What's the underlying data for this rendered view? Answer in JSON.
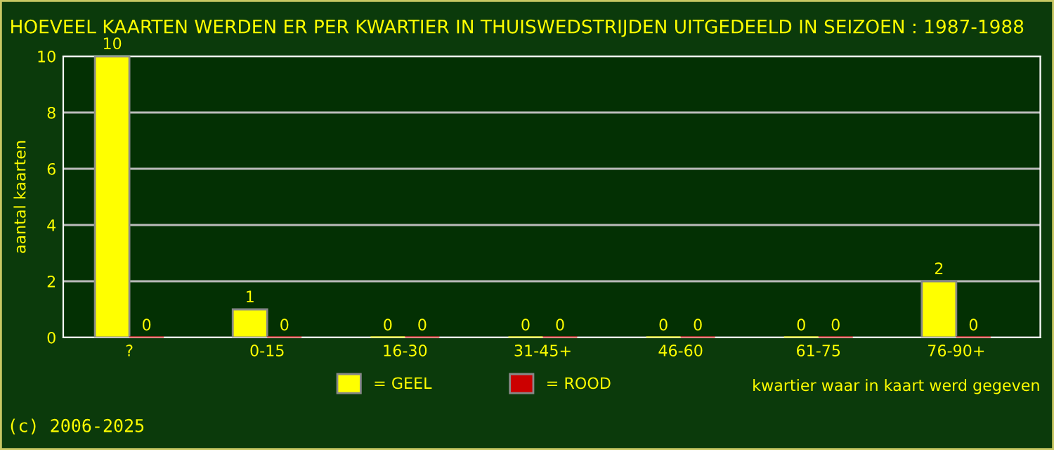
{
  "chart_data": {
    "type": "bar",
    "title": "HOEVEEL KAARTEN WERDEN ER PER KWARTIER IN THUISWEDSTRIJDEN UITGEDEELD IN SEIZOEN : 1987-1988",
    "categories": [
      "?",
      "0-15",
      "16-30",
      "31-45+",
      "46-60",
      "61-75",
      "76-90+"
    ],
    "series": [
      {
        "name": "= GEEL",
        "color": "#ffff00",
        "values": [
          10,
          1,
          0,
          0,
          0,
          0,
          2
        ]
      },
      {
        "name": "= ROOD",
        "color": "#cc0000",
        "values": [
          0,
          0,
          0,
          0,
          0,
          0,
          0
        ]
      }
    ],
    "ylabel": "aantal kaarten",
    "xlabel": "kwartier waar in kaart werd gegeven",
    "ylim": [
      0,
      10
    ],
    "yticks": [
      0,
      2,
      4,
      6,
      8,
      10
    ],
    "grid": "y",
    "legend": "bottom",
    "data_labels": true,
    "annotations": [
      "(c) 2006-2025"
    ]
  }
}
